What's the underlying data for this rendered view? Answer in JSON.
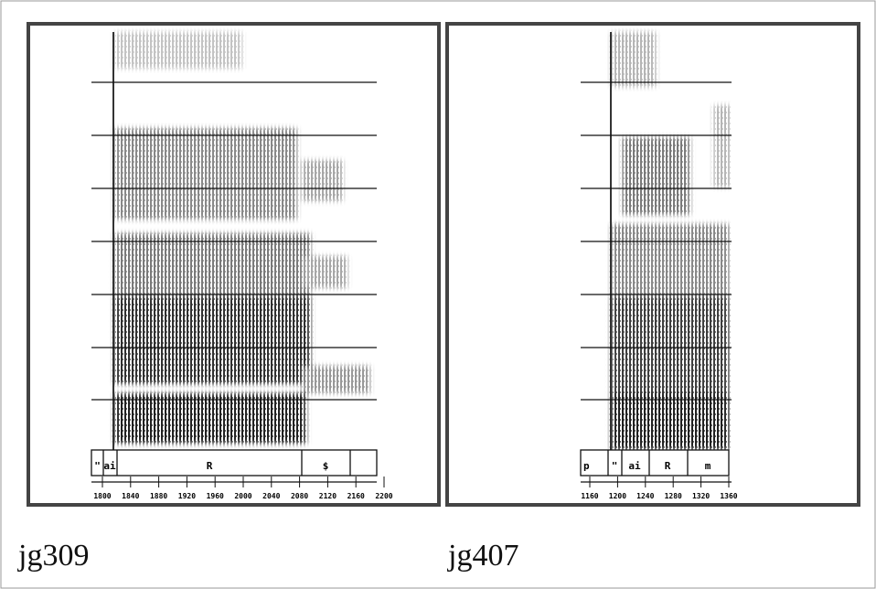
{
  "panels": [
    {
      "caption": "jg309",
      "segments": [
        "\"",
        "ai",
        "R",
        "$"
      ],
      "time_ticks": [
        "1800",
        "1840",
        "1880",
        "1920",
        "1960",
        "2000",
        "2040",
        "2080",
        "2120",
        "2160",
        "2200"
      ]
    },
    {
      "caption": "jg407",
      "segments": [
        "p",
        "\"",
        "ai",
        "R",
        "m"
      ],
      "time_ticks": [
        "1160",
        "1200",
        "1240",
        "1280",
        "1320",
        "1360"
      ]
    }
  ]
}
